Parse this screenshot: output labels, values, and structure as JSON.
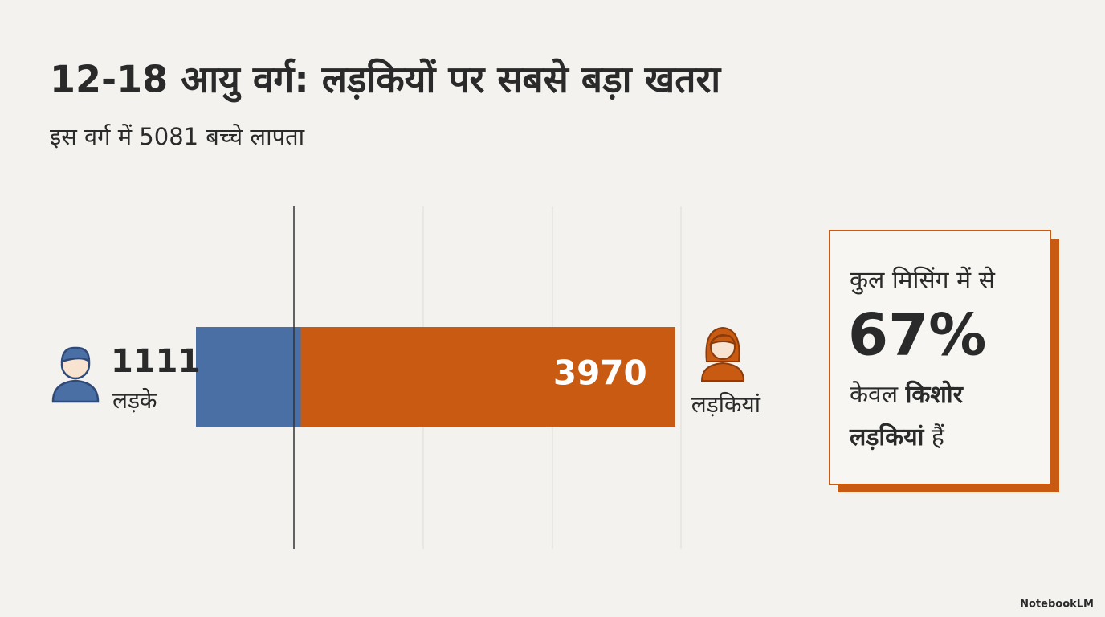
{
  "chart_data": {
    "type": "stacked-hbar",
    "title": "12-18 आयु वर्ग: लड़कियों पर सबसे बड़ा खतरा",
    "subtitle": "इस वर्ग में 5081 बच्चे लापता",
    "xlim": [
      0,
      5100
    ],
    "series": [
      {
        "name": "लड़के",
        "color": "#4a6fa5",
        "values": [
          1111
        ]
      },
      {
        "name": "लड़कियां",
        "color": "#c85a12",
        "values": [
          3970
        ]
      }
    ]
  },
  "callout": {
    "line1": "कुल मिसिंग में से",
    "highlight": "67%",
    "line3_a": "केवल",
    "line3_b": "किशोर",
    "line4_a": "लड़कियां",
    "line4_b": "हैं"
  },
  "footer": "NotebookLM"
}
